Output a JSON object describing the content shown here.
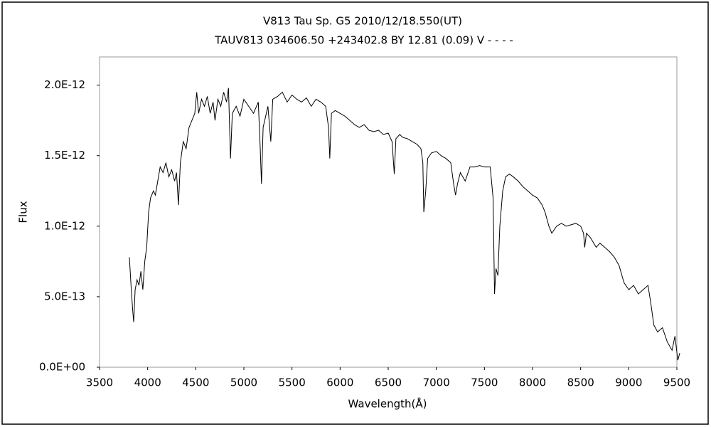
{
  "chart_data": {
    "type": "line",
    "title": "V813 Tau    Sp. G5    2010/12/18.550(UT)",
    "subtitle": "TAUV813 034606.50 +243402.8 BY 12.81 (0.09) V - - - -",
    "x_label": "Wavelength(Å)",
    "y_label": "Flux",
    "xlim": [
      3500,
      9500
    ],
    "xticks": [
      3500,
      4000,
      4500,
      5000,
      5500,
      6000,
      6500,
      7000,
      7500,
      8000,
      8500,
      9000,
      9500
    ],
    "ylim": [
      0,
      2.2e-12
    ],
    "yticks": [
      {
        "value": 0,
        "label": "0.0E+00"
      },
      {
        "value": 5e-13,
        "label": "5.0E-13"
      },
      {
        "value": 1e-12,
        "label": "1.0E-12"
      },
      {
        "value": 1.5e-12,
        "label": "1.5E-12"
      },
      {
        "value": 2e-12,
        "label": "2.0E-12"
      }
    ],
    "color": "#000000",
    "x": [
      3810,
      3830,
      3845,
      3855,
      3870,
      3890,
      3910,
      3930,
      3950,
      3970,
      3990,
      4010,
      4030,
      4060,
      4080,
      4100,
      4130,
      4160,
      4190,
      4220,
      4250,
      4280,
      4300,
      4320,
      4340,
      4370,
      4400,
      4430,
      4460,
      4490,
      4510,
      4530,
      4560,
      4590,
      4620,
      4650,
      4680,
      4700,
      4730,
      4760,
      4790,
      4820,
      4840,
      4861,
      4880,
      4920,
      4960,
      5000,
      5050,
      5100,
      5150,
      5170,
      5183,
      5200,
      5250,
      5280,
      5300,
      5350,
      5400,
      5450,
      5500,
      5550,
      5600,
      5650,
      5700,
      5750,
      5800,
      5850,
      5880,
      5893,
      5910,
      5950,
      6000,
      6050,
      6100,
      6150,
      6200,
      6250,
      6300,
      6350,
      6400,
      6450,
      6500,
      6540,
      6563,
      6580,
      6620,
      6650,
      6700,
      6750,
      6800,
      6840,
      6860,
      6870,
      6890,
      6910,
      6950,
      7000,
      7050,
      7100,
      7150,
      7180,
      7200,
      7220,
      7250,
      7300,
      7350,
      7400,
      7450,
      7500,
      7560,
      7590,
      7605,
      7620,
      7640,
      7660,
      7690,
      7720,
      7760,
      7800,
      7850,
      7900,
      7950,
      8000,
      8050,
      8100,
      8130,
      8170,
      8200,
      8250,
      8300,
      8350,
      8400,
      8450,
      8500,
      8530,
      8542,
      8560,
      8600,
      8662,
      8700,
      8750,
      8800,
      8850,
      8900,
      8950,
      9000,
      9050,
      9100,
      9150,
      9200,
      9230,
      9260,
      9300,
      9350,
      9400,
      9450,
      9480,
      9510,
      9530
    ],
    "values": [
      7.8e-13,
      5.5e-13,
      4e-13,
      3.2e-13,
      5.5e-13,
      6.2e-13,
      5.8e-13,
      6.8e-13,
      5.5e-13,
      7.5e-13,
      8.5e-13,
      1.1e-12,
      1.2e-12,
      1.25e-12,
      1.22e-12,
      1.3e-12,
      1.42e-12,
      1.38e-12,
      1.45e-12,
      1.35e-12,
      1.4e-12,
      1.32e-12,
      1.38e-12,
      1.15e-12,
      1.45e-12,
      1.6e-12,
      1.55e-12,
      1.7e-12,
      1.75e-12,
      1.8e-12,
      1.95e-12,
      1.8e-12,
      1.9e-12,
      1.85e-12,
      1.92e-12,
      1.8e-12,
      1.88e-12,
      1.75e-12,
      1.9e-12,
      1.85e-12,
      1.95e-12,
      1.88e-12,
      1.98e-12,
      1.48e-12,
      1.8e-12,
      1.85e-12,
      1.78e-12,
      1.9e-12,
      1.85e-12,
      1.8e-12,
      1.88e-12,
      1.55e-12,
      1.3e-12,
      1.7e-12,
      1.85e-12,
      1.6e-12,
      1.9e-12,
      1.92e-12,
      1.95e-12,
      1.88e-12,
      1.93e-12,
      1.9e-12,
      1.88e-12,
      1.91e-12,
      1.85e-12,
      1.9e-12,
      1.88e-12,
      1.85e-12,
      1.7e-12,
      1.48e-12,
      1.8e-12,
      1.82e-12,
      1.8e-12,
      1.78e-12,
      1.75e-12,
      1.72e-12,
      1.7e-12,
      1.72e-12,
      1.68e-12,
      1.67e-12,
      1.68e-12,
      1.65e-12,
      1.66e-12,
      1.6e-12,
      1.37e-12,
      1.62e-12,
      1.65e-12,
      1.63e-12,
      1.62e-12,
      1.6e-12,
      1.58e-12,
      1.55e-12,
      1.45e-12,
      1.1e-12,
      1.25e-12,
      1.48e-12,
      1.52e-12,
      1.53e-12,
      1.5e-12,
      1.48e-12,
      1.45e-12,
      1.3e-12,
      1.22e-12,
      1.3e-12,
      1.38e-12,
      1.32e-12,
      1.42e-12,
      1.42e-12,
      1.43e-12,
      1.42e-12,
      1.42e-12,
      1.2e-12,
      5.2e-13,
      7e-13,
      6.5e-13,
      1e-12,
      1.25e-12,
      1.35e-12,
      1.37e-12,
      1.35e-12,
      1.32e-12,
      1.28e-12,
      1.25e-12,
      1.22e-12,
      1.2e-12,
      1.15e-12,
      1.1e-12,
      1e-12,
      9.5e-13,
      1e-12,
      1.02e-12,
      1e-12,
      1.01e-12,
      1.02e-12,
      1e-12,
      9.5e-13,
      8.5e-13,
      9.5e-13,
      9.2e-13,
      8.5e-13,
      8.8e-13,
      8.5e-13,
      8.2e-13,
      7.8e-13,
      7.2e-13,
      6e-13,
      5.5e-13,
      5.8e-13,
      5.2e-13,
      5.5e-13,
      5.8e-13,
      4.5e-13,
      3e-13,
      2.5e-13,
      2.8e-13,
      1.8e-13,
      1.2e-13,
      2.2e-13,
      5e-14,
      1e-13
    ]
  }
}
